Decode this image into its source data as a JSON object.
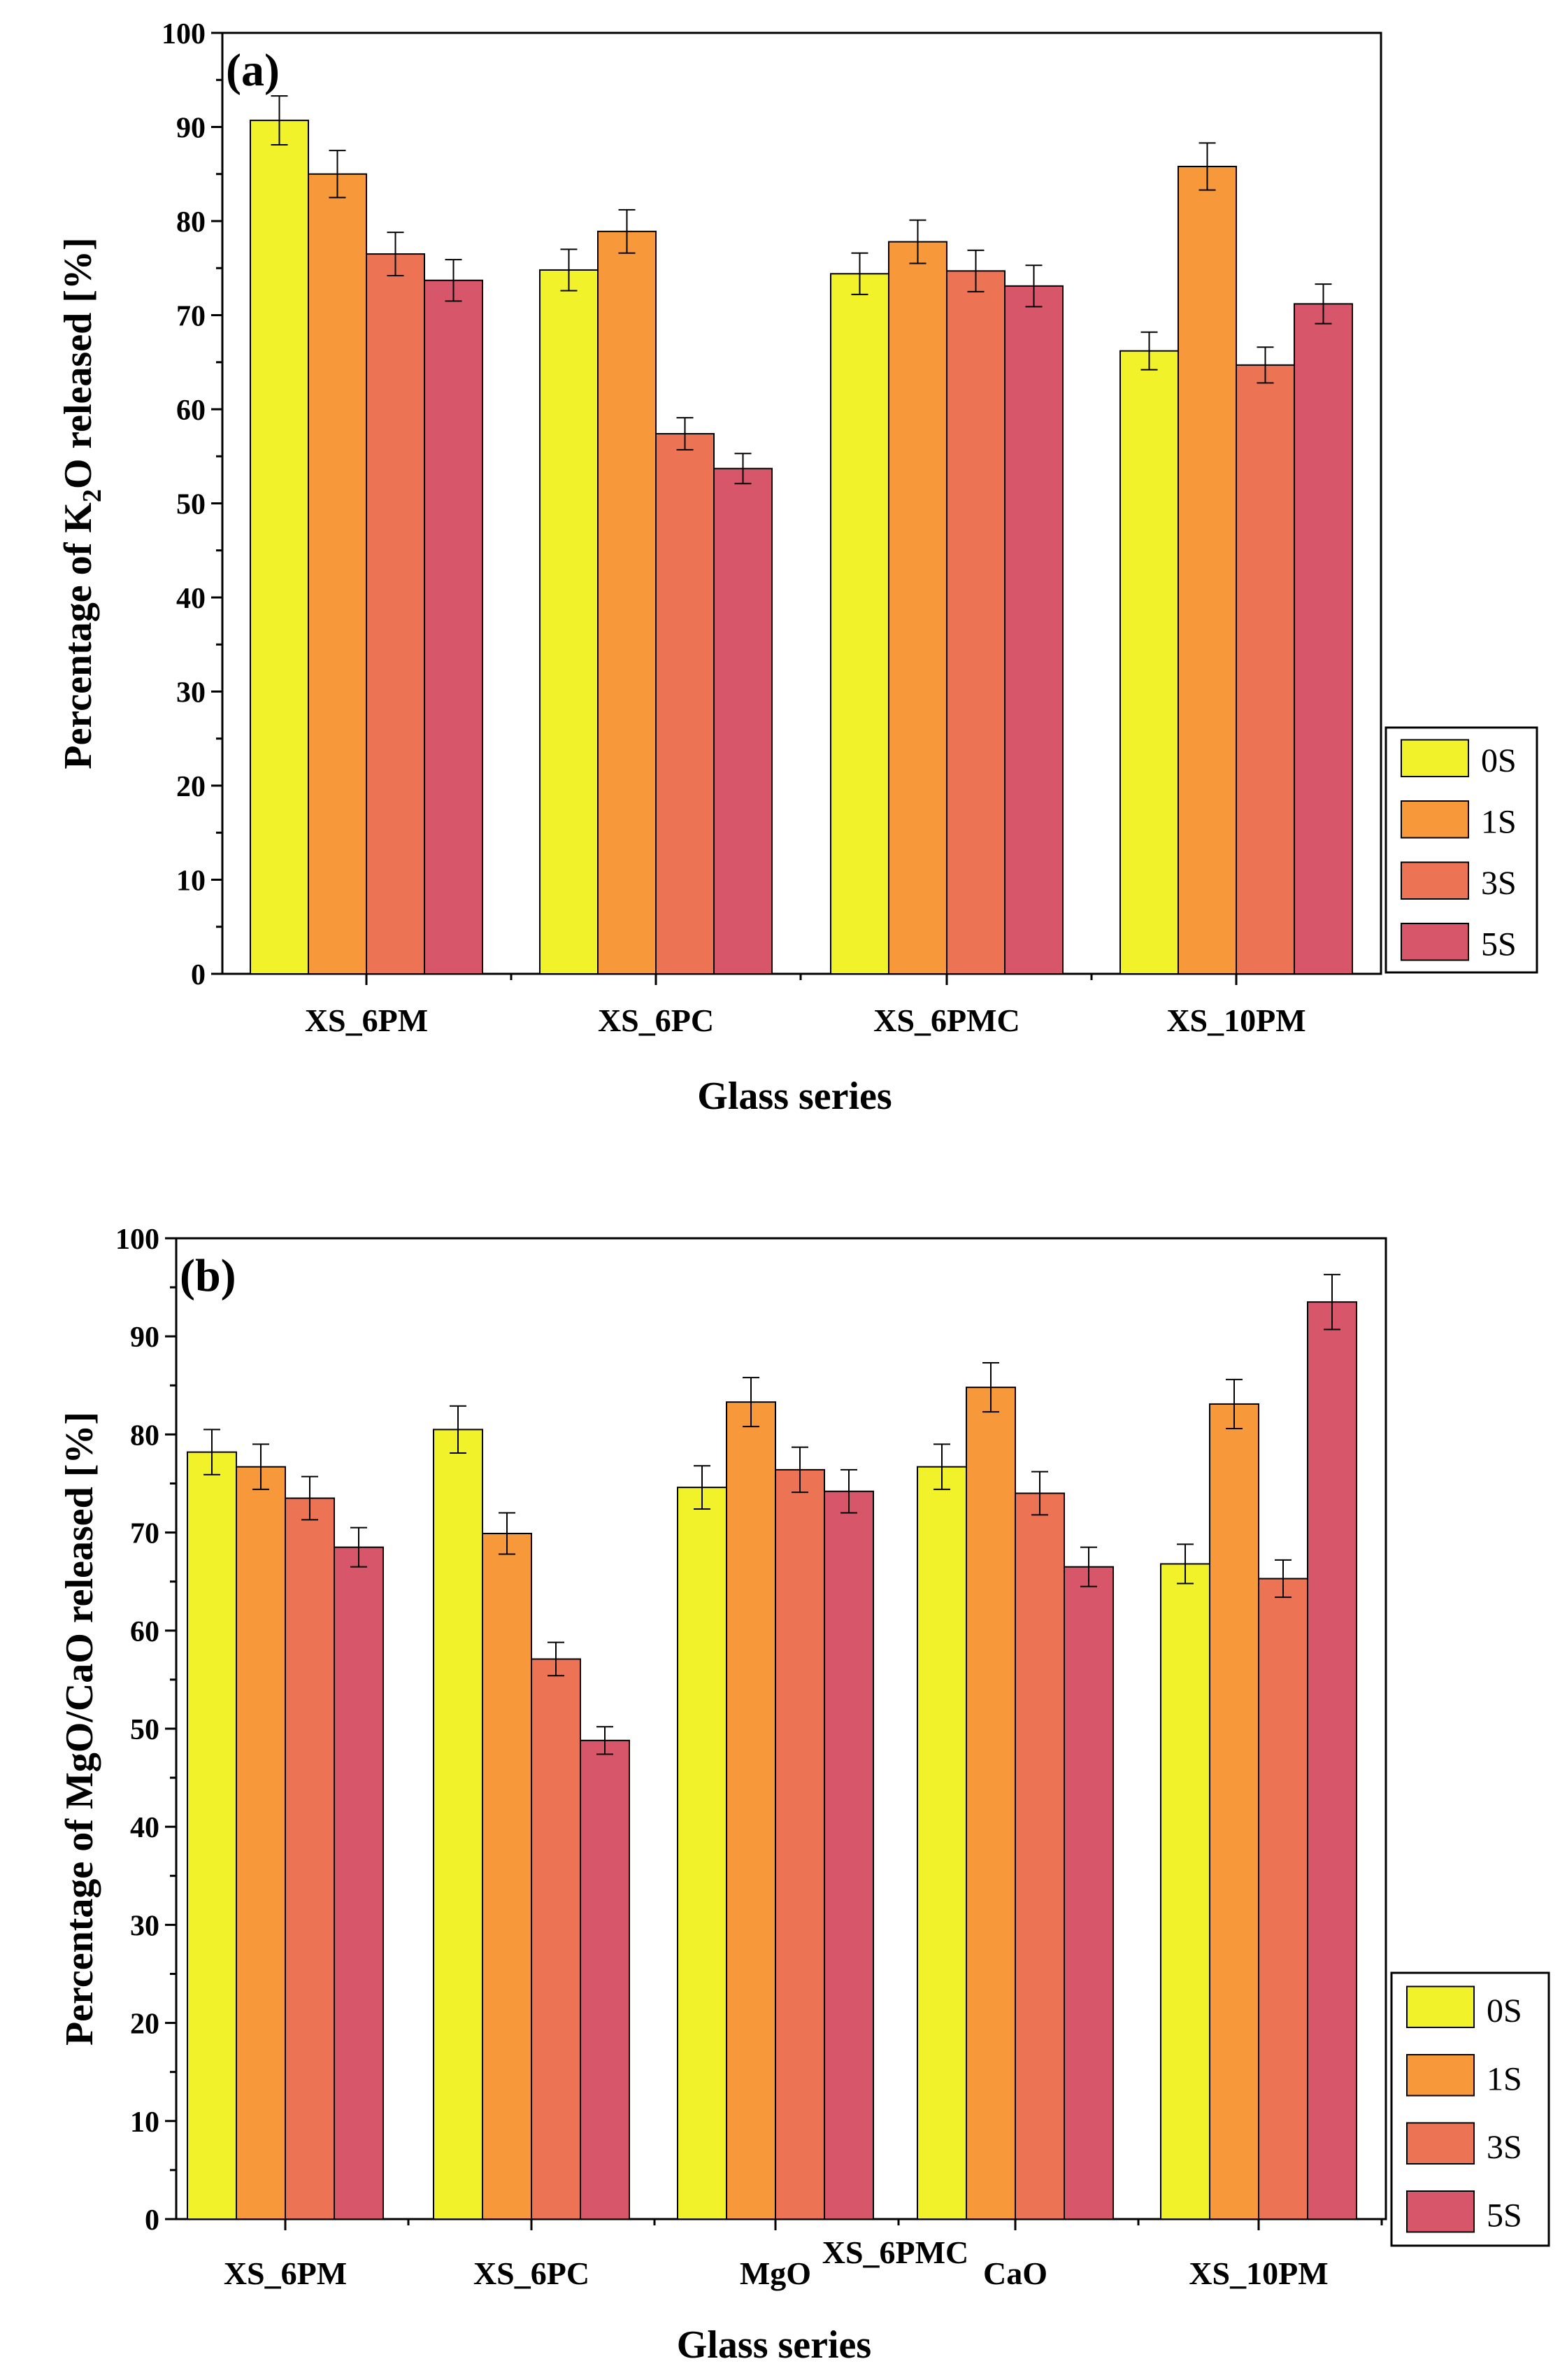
{
  "colors": {
    "0S": "#f2f22a",
    "1S": "#f7983a",
    "3S": "#ec7454",
    "5S": "#d7566a"
  },
  "chart_data": [
    {
      "type": "bar",
      "panel_label": "(a)",
      "title": "",
      "xlabel": "Glass series",
      "ylabel_parts": [
        "Percentage of K",
        "2",
        "O released [%]"
      ],
      "ylim": [
        0,
        100
      ],
      "yticks": [
        0,
        10,
        20,
        30,
        40,
        50,
        60,
        70,
        80,
        90,
        100
      ],
      "categories": [
        "XS_6PM",
        "XS_6PC",
        "XS_6PMC",
        "XS_10PM"
      ],
      "group_note": "",
      "legend_position": "bottom-right",
      "series": [
        {
          "name": "0S",
          "values": [
            90.7,
            74.8,
            74.4,
            66.2
          ],
          "errors": [
            2.6,
            2.2,
            2.2,
            2.0
          ]
        },
        {
          "name": "1S",
          "values": [
            85.0,
            78.9,
            77.8,
            85.8
          ],
          "errors": [
            2.5,
            2.3,
            2.3,
            2.5
          ]
        },
        {
          "name": "3S",
          "values": [
            76.5,
            57.4,
            74.7,
            64.7
          ],
          "errors": [
            2.3,
            1.7,
            2.2,
            1.9
          ]
        },
        {
          "name": "5S",
          "values": [
            73.7,
            53.7,
            73.1,
            71.2
          ],
          "errors": [
            2.2,
            1.6,
            2.2,
            2.1
          ]
        }
      ]
    },
    {
      "type": "bar",
      "panel_label": "(b)",
      "title": "",
      "xlabel": "Glass series",
      "ylabel_parts": [
        "Percentage of MgO/CaO released [%]"
      ],
      "ylim": [
        0,
        100
      ],
      "yticks": [
        0,
        10,
        20,
        30,
        40,
        50,
        60,
        70,
        80,
        90,
        100
      ],
      "categories": [
        "XS_6PM",
        "XS_6PC",
        "MgO",
        "CaO",
        "XS_10PM"
      ],
      "group_note": "XS_6PMC",
      "legend_position": "bottom-right",
      "series": [
        {
          "name": "0S",
          "values": [
            78.2,
            80.5,
            74.6,
            76.7,
            66.8
          ],
          "errors": [
            2.3,
            2.4,
            2.2,
            2.3,
            2.0
          ]
        },
        {
          "name": "1S",
          "values": [
            76.7,
            69.9,
            83.3,
            84.8,
            83.1
          ],
          "errors": [
            2.3,
            2.1,
            2.5,
            2.5,
            2.5
          ]
        },
        {
          "name": "3S",
          "values": [
            73.5,
            57.1,
            76.4,
            74.0,
            65.3
          ],
          "errors": [
            2.2,
            1.7,
            2.3,
            2.2,
            1.9
          ]
        },
        {
          "name": "5S",
          "values": [
            68.5,
            48.8,
            74.2,
            66.5,
            93.5
          ],
          "errors": [
            2.0,
            1.4,
            2.2,
            2.0,
            2.8
          ]
        }
      ]
    }
  ]
}
